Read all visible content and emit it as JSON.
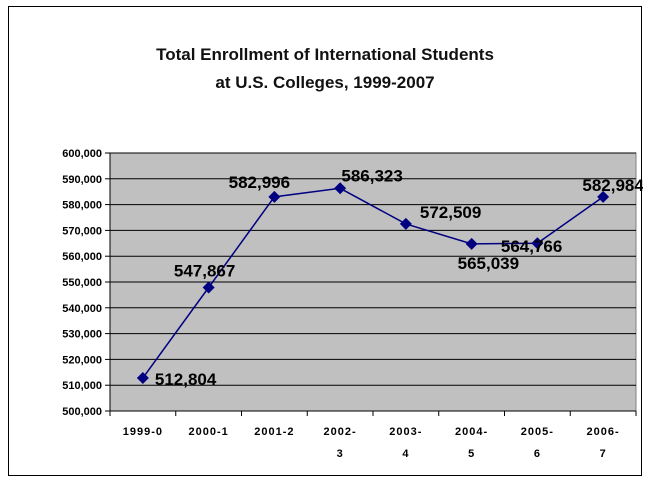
{
  "chart_data": {
    "type": "line",
    "title": [
      "Total Enrollment of International Students",
      "at U.S. Colleges, 1999-2007"
    ],
    "xlabel": "",
    "ylabel": "",
    "categories": [
      [
        "1999-0"
      ],
      [
        "2000-1"
      ],
      [
        "2001-2"
      ],
      [
        "2002-",
        "3"
      ],
      [
        "2003-",
        "4"
      ],
      [
        "2004-",
        "5"
      ],
      [
        "2005-",
        "6"
      ],
      [
        "2006-",
        "7"
      ]
    ],
    "values": [
      512804,
      547867,
      582996,
      586323,
      572509,
      564766,
      565039,
      582984
    ],
    "data_labels": [
      "512,804",
      "547,867",
      "582,996",
      "586,323",
      "572,509",
      "564,766",
      "565,039",
      "582,984"
    ],
    "ylim": [
      500000,
      600000
    ],
    "yticks": [
      500000,
      510000,
      520000,
      530000,
      540000,
      550000,
      560000,
      570000,
      580000,
      590000,
      600000
    ],
    "ytick_labels": [
      "500,000",
      "510,000",
      "520,000",
      "530,000",
      "540,000",
      "550,000",
      "560,000",
      "570,000",
      "580,000",
      "590,000",
      "600,000"
    ],
    "grid": true,
    "legend": "none",
    "colors": {
      "line": "#000080",
      "marker": "#000080",
      "plot_bg": "#c0c0c0",
      "grid": "#000000"
    }
  }
}
